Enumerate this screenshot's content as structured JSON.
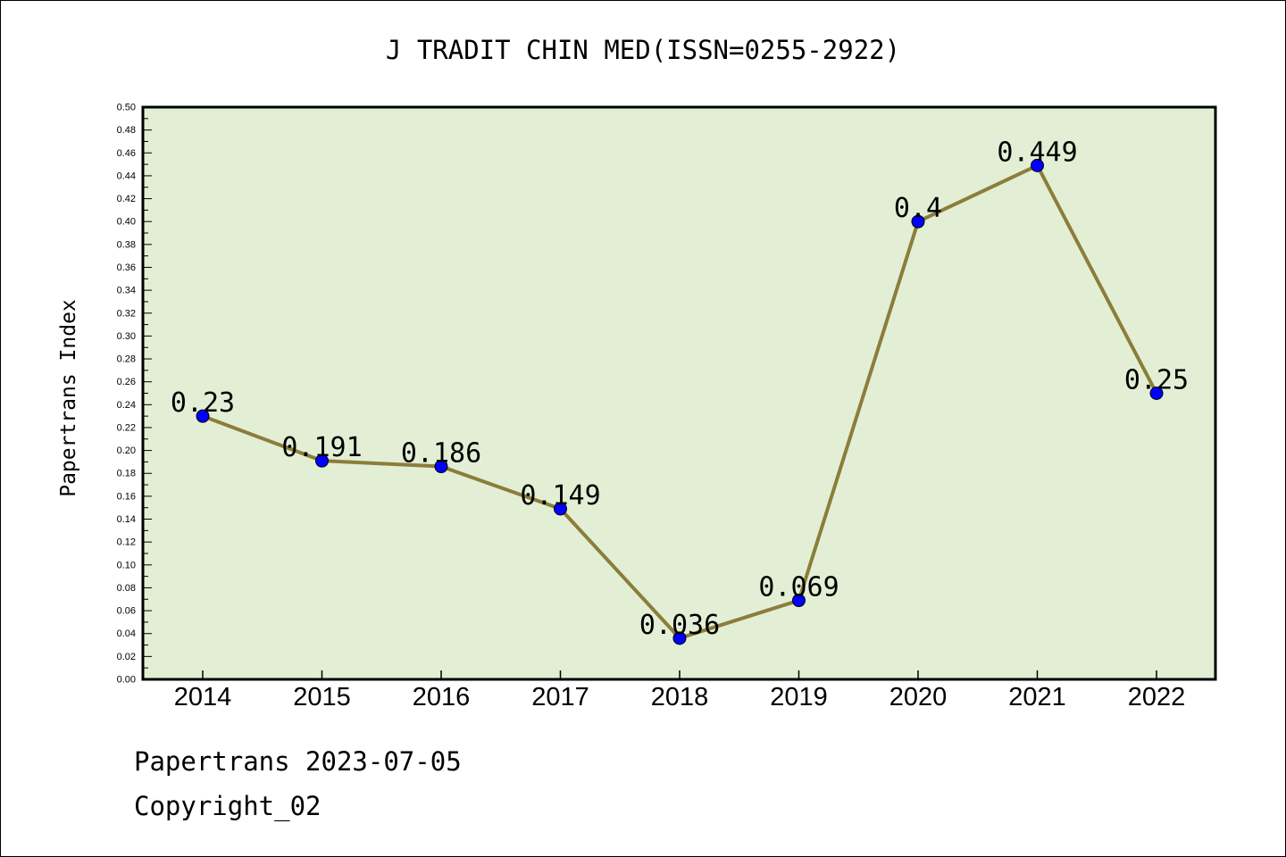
{
  "chart_data": {
    "type": "line",
    "title": "J TRADIT CHIN MED(ISSN=0255-2922)",
    "ylabel": "Papertrans Index",
    "xlabel": "",
    "categories": [
      "2014",
      "2015",
      "2016",
      "2017",
      "2018",
      "2019",
      "2020",
      "2021",
      "2022"
    ],
    "series": [
      {
        "values": [
          0.23,
          0.191,
          0.186,
          0.149,
          0.036,
          0.069,
          0.4,
          0.449,
          0.25
        ],
        "labels": [
          "0.23",
          "0.191",
          "0.186",
          "0.149",
          "0.036",
          "0.069",
          "0.4",
          "0.449",
          "0.25"
        ]
      }
    ],
    "ylim": [
      0,
      0.5
    ],
    "yticks": [
      "0.00",
      "0.02",
      "0.04",
      "0.06",
      "0.08",
      "0.10",
      "0.12",
      "0.14",
      "0.16",
      "0.18",
      "0.20",
      "0.22",
      "0.24",
      "0.26",
      "0.28",
      "0.30",
      "0.32",
      "0.34",
      "0.36",
      "0.38",
      "0.40",
      "0.42",
      "0.44",
      "0.46",
      "0.48",
      "0.50"
    ],
    "grid": false,
    "colors": {
      "plot_background": "#e2efd5",
      "line": "#8b7d3a",
      "marker": "#0000ff",
      "axis": "#000000"
    }
  },
  "footer": {
    "line1": "Papertrans 2023-07-05",
    "line2": "Copyright_02"
  }
}
